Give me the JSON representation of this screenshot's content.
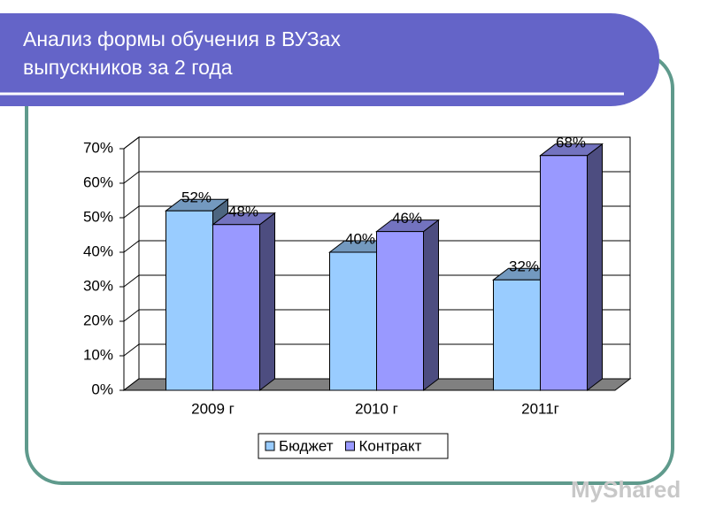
{
  "chart_data": {
    "type": "bar3d",
    "title": [
      "Анализ формы обучения в ВУЗах",
      "выпускников за 2 года"
    ],
    "categories": [
      "2009 г",
      "2010 г",
      "2011г"
    ],
    "series": [
      {
        "name": "Бюджет",
        "color": "#99ccff",
        "values": [
          52,
          40,
          32
        ],
        "value_labels": [
          "52%",
          "40%",
          "32%"
        ]
      },
      {
        "name": "Контракт",
        "color": "#9999ff",
        "values": [
          48,
          46,
          68
        ],
        "value_labels": [
          "48%",
          "46%",
          "68%"
        ]
      }
    ],
    "ylim": [
      0,
      70
    ],
    "yticks": [
      {
        "value": 0,
        "label": "0%"
      },
      {
        "value": 10,
        "label": "10%"
      },
      {
        "value": 20,
        "label": "20%"
      },
      {
        "value": 30,
        "label": "30%"
      },
      {
        "value": 40,
        "label": "40%"
      },
      {
        "value": 50,
        "label": "50%"
      },
      {
        "value": 60,
        "label": "60%"
      },
      {
        "value": 70,
        "label": "70%"
      }
    ],
    "grid": true,
    "legend": "bottom",
    "watermark": "MyShared"
  }
}
